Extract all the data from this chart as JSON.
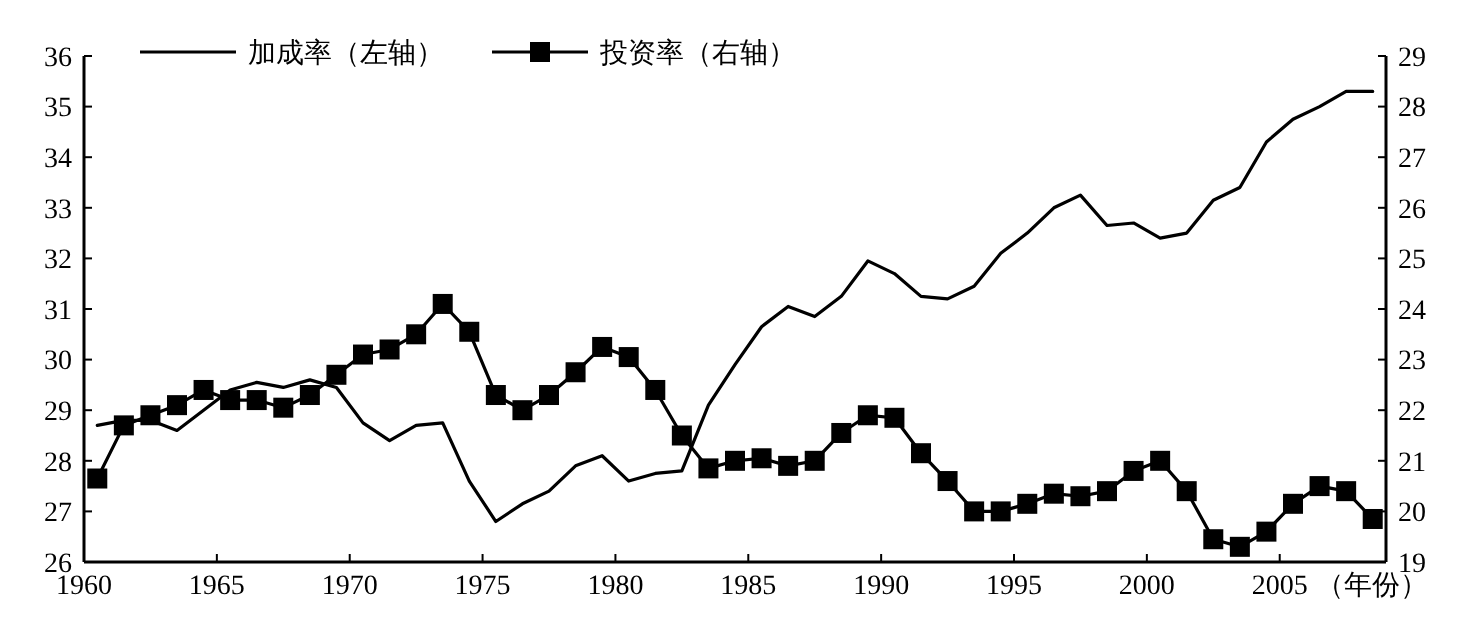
{
  "chart_data": {
    "type": "line",
    "xlabel": "（年份）",
    "xlim": [
      1960,
      2009
    ],
    "xticks": [
      1960,
      1965,
      1970,
      1975,
      1980,
      1985,
      1990,
      1995,
      2000,
      2005
    ],
    "ylim": [
      26,
      36
    ],
    "yticks": [
      26,
      27,
      28,
      29,
      30,
      31,
      32,
      33,
      34,
      35,
      36
    ],
    "y2lim": [
      19,
      29
    ],
    "y2ticks": [
      19,
      20,
      21,
      22,
      23,
      24,
      25,
      26,
      27,
      28,
      29
    ],
    "legend": "top left",
    "grid": false,
    "x": [
      1960.5,
      1961.5,
      1962.5,
      1963.5,
      1964.5,
      1965.5,
      1966.5,
      1967.5,
      1968.5,
      1969.5,
      1970.5,
      1971.5,
      1972.5,
      1973.5,
      1974.5,
      1975.5,
      1976.5,
      1977.5,
      1978.5,
      1979.5,
      1980.5,
      1981.5,
      1982.5,
      1983.5,
      1984.5,
      1985.5,
      1986.5,
      1987.5,
      1988.5,
      1989.5,
      1990.5,
      1991.5,
      1992.5,
      1993.5,
      1994.5,
      1995.5,
      1996.5,
      1997.5,
      1998.5,
      1999.5,
      2000.5,
      2001.5,
      2002.5,
      2003.5,
      2004.5,
      2005.5,
      2006.5,
      2007.5,
      2008.5
    ],
    "series": [
      {
        "name": "加成率（左轴）",
        "color": "#000000",
        "marker": "none",
        "values": [
          28.7,
          28.8,
          28.8,
          28.6,
          29.0,
          29.4,
          29.55,
          29.45,
          29.6,
          29.45,
          28.75,
          28.4,
          28.7,
          28.75,
          27.6,
          26.8,
          27.15,
          27.4,
          27.9,
          28.1,
          27.6,
          27.75,
          27.8,
          29.1,
          29.9,
          30.65,
          31.05,
          30.85,
          31.25,
          31.95,
          31.7,
          31.25,
          31.2,
          31.45,
          32.1,
          32.5,
          33.0,
          33.25,
          32.65,
          32.7,
          32.4,
          32.5,
          33.15,
          33.4,
          34.3,
          34.75,
          35.0,
          35.3,
          35.3
        ]
      },
      {
        "name": "投资率（右轴）",
        "color": "#000000",
        "marker": "square",
        "axis": "y2",
        "values": [
          20.65,
          21.7,
          21.9,
          22.1,
          22.4,
          22.2,
          22.2,
          22.05,
          22.3,
          22.7,
          23.1,
          23.2,
          23.5,
          24.1,
          23.55,
          22.3,
          22.0,
          22.3,
          22.75,
          23.25,
          23.05,
          22.4,
          21.5,
          20.85,
          21.0,
          21.05,
          20.9,
          21.0,
          21.55,
          21.9,
          21.85,
          21.15,
          20.6,
          20.0,
          20.0,
          20.15,
          20.35,
          20.3,
          20.4,
          20.8,
          21.0,
          20.4,
          19.45,
          19.3,
          19.6,
          20.15,
          20.5,
          20.4,
          19.85
        ]
      }
    ]
  }
}
